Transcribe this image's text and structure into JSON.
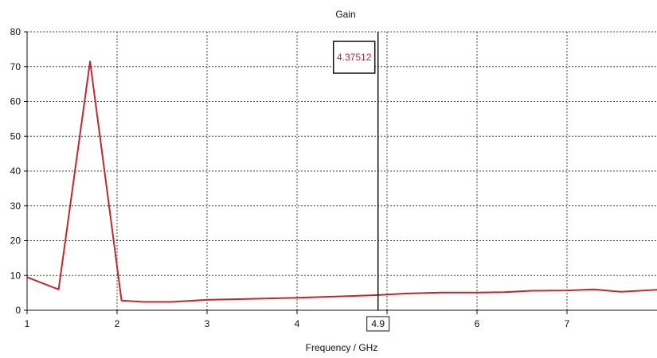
{
  "chart_data": {
    "type": "line",
    "title": "Gain",
    "xlabel": "Frequency / GHz",
    "ylabel": "",
    "xlim": [
      1,
      8
    ],
    "ylim": [
      0,
      80
    ],
    "x_ticks": [
      1,
      2,
      3,
      4,
      5,
      6,
      7
    ],
    "y_ticks": [
      0,
      10,
      20,
      30,
      40,
      50,
      60,
      70,
      80
    ],
    "grid": true,
    "legend": "none",
    "colors": {
      "series": "#c0282f",
      "axis": "#111111",
      "grid": "#444444",
      "marker_text": "#c0282f"
    },
    "marker": {
      "x": 4.9,
      "x_label": "4.9",
      "y_label": "4.37512"
    },
    "series": [
      {
        "x": [
          1.0,
          1.35,
          1.7,
          2.05,
          2.3,
          2.6,
          3.0,
          3.5,
          4.0,
          4.5,
          4.9,
          5.2,
          5.6,
          6.0,
          6.3,
          6.6,
          7.0,
          7.3,
          7.6,
          8.0
        ],
        "y": [
          9.5,
          6.0,
          71.5,
          2.8,
          2.4,
          2.4,
          3.0,
          3.3,
          3.6,
          4.0,
          4.375,
          4.8,
          5.1,
          5.1,
          5.2,
          5.6,
          5.7,
          6.0,
          5.3,
          5.9
        ]
      }
    ]
  }
}
